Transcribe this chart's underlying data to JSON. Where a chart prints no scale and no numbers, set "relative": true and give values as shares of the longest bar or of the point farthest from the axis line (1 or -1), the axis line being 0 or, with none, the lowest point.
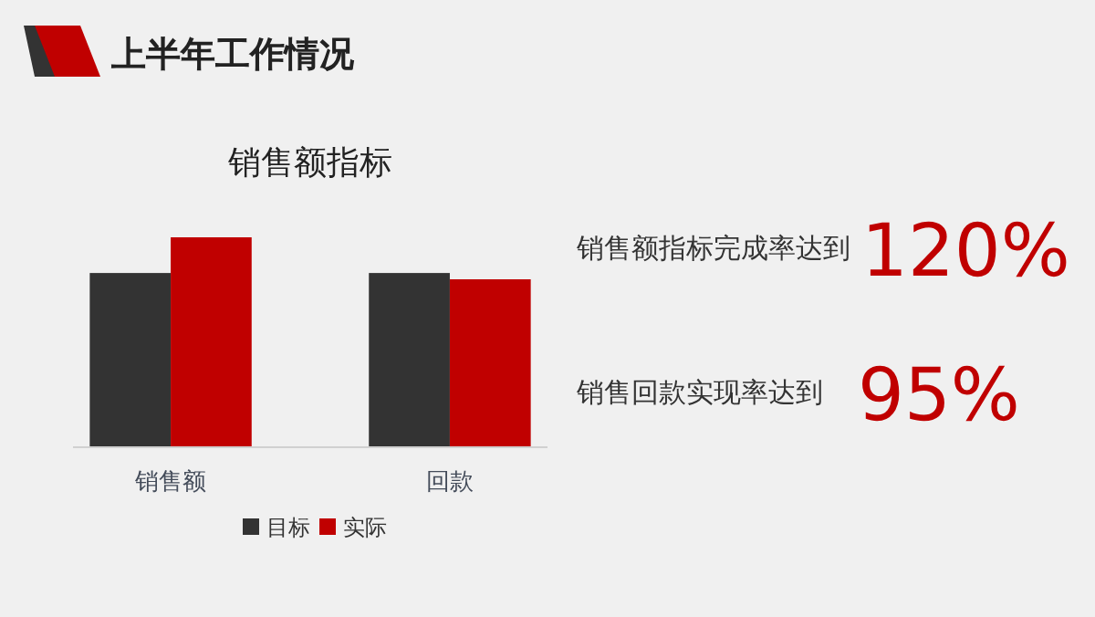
{
  "chart_data": {
    "type": "bar",
    "title": "上半年工作情况",
    "subtitle": "销售额指标",
    "categories": [
      "销售额",
      "回款"
    ],
    "relative": true,
    "legend": "bottom",
    "series": [
      {
        "name": "目标",
        "color": "#333333",
        "values": [
          0.83,
          0.83
        ]
      },
      {
        "name": "实际",
        "color": "#c00000",
        "values": [
          1,
          0.8
        ]
      }
    ],
    "annotations": [
      "销售额指标完成率达到",
      "120%",
      "销售回款实现率达到",
      "95%"
    ]
  }
}
